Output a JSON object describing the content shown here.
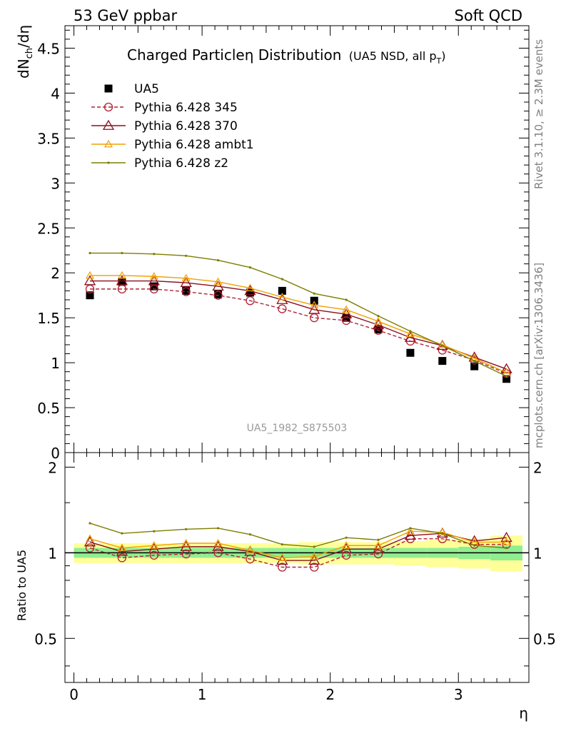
{
  "header": {
    "left": "53 GeV ppbar",
    "right": "Soft QCD"
  },
  "side_text": {
    "right_top": "Rivet 3.1.10, ≥ 2.3M events",
    "right_bottom": "mcplots.cern.ch [arXiv:1306.3436]"
  },
  "watermark": "UA5_1982_S875503",
  "chart_data": [
    {
      "type": "line",
      "panel": "main",
      "title": "Charged Particleη Distribution",
      "subtitle": "(UA5 NSD, all p",
      "subtitle_sub": "T",
      "subtitle_close": ")",
      "xlabel": "η",
      "ylabel": "dN",
      "ylabel_sub": "ch",
      "ylabel_tail": "/dη",
      "xlim": [
        -0.07,
        3.55
      ],
      "ylim": [
        0,
        4.75
      ],
      "x_ticks": [
        0,
        1,
        2,
        3
      ],
      "y_ticks": [
        0,
        0.5,
        1,
        1.5,
        2,
        2.5,
        3,
        3.5,
        4,
        4.5
      ],
      "y_tick_labels": [
        "0",
        "0.5",
        "1",
        "1.5",
        "2",
        "2.5",
        "3",
        "3.5",
        "4",
        "4.5"
      ],
      "legend_position": "top-left",
      "x": [
        0.125,
        0.375,
        0.625,
        0.875,
        1.125,
        1.375,
        1.625,
        1.875,
        2.125,
        2.375,
        2.625,
        2.875,
        3.125,
        3.375
      ],
      "series": [
        {
          "name": "UA5",
          "color": "#000000",
          "marker": "square",
          "line": "none",
          "values": [
            1.75,
            1.9,
            1.85,
            1.8,
            1.76,
            1.78,
            1.8,
            1.69,
            1.5,
            1.37,
            1.11,
            1.02,
            0.96,
            0.82
          ]
        },
        {
          "name": "Pythia 6.428 345",
          "color": "#b22234",
          "marker": "open-circle",
          "line": "dashed",
          "values": [
            1.82,
            1.82,
            1.82,
            1.79,
            1.75,
            1.69,
            1.6,
            1.5,
            1.47,
            1.36,
            1.24,
            1.14,
            1.03,
            0.88
          ]
        },
        {
          "name": "Pythia 6.428 370",
          "color": "#8b0f1f",
          "marker": "open-triangle",
          "line": "solid",
          "values": [
            1.91,
            1.91,
            1.91,
            1.89,
            1.85,
            1.8,
            1.7,
            1.59,
            1.54,
            1.42,
            1.28,
            1.19,
            1.06,
            0.93
          ]
        },
        {
          "name": "Pythia 6.428 ambt1",
          "color": "#f2a000",
          "marker": "open-triangle-small",
          "line": "solid",
          "values": [
            1.97,
            1.97,
            1.96,
            1.94,
            1.9,
            1.83,
            1.73,
            1.64,
            1.59,
            1.46,
            1.32,
            1.2,
            1.05,
            0.89
          ]
        },
        {
          "name": "Pythia 6.428 z2",
          "color": "#7d7d00",
          "marker": "dot",
          "line": "solid",
          "values": [
            2.22,
            2.22,
            2.21,
            2.19,
            2.14,
            2.06,
            1.93,
            1.77,
            1.7,
            1.52,
            1.35,
            1.19,
            1.02,
            0.85
          ]
        }
      ]
    },
    {
      "type": "line",
      "panel": "ratio",
      "ylabel": "Ratio to UA5",
      "xlabel": "η",
      "xlim": [
        -0.07,
        3.55
      ],
      "ylim": [
        0.35,
        2.25
      ],
      "y_scale": "log",
      "y_ticks": [
        0.5,
        1,
        2
      ],
      "y_tick_labels": [
        "0.5",
        "1",
        "2"
      ],
      "x_ticks": [
        0,
        1,
        2,
        3
      ],
      "x_tick_labels": [
        "0",
        "1",
        "2",
        "3"
      ],
      "x": [
        0.125,
        0.375,
        0.625,
        0.875,
        1.125,
        1.375,
        1.625,
        1.875,
        2.125,
        2.375,
        2.625,
        2.875,
        3.125,
        3.375
      ],
      "uncertainty_bands": {
        "stat_color": "#90ee90",
        "syst_color": "#ffff99",
        "bin_edges": [
          0,
          0.25,
          0.5,
          0.75,
          1.0,
          1.25,
          1.5,
          1.75,
          2.0,
          2.25,
          2.5,
          2.75,
          3.0,
          3.25,
          3.5
        ],
        "inner_up": [
          1.04,
          1.04,
          1.04,
          1.04,
          1.04,
          1.04,
          1.04,
          1.04,
          1.04,
          1.04,
          1.04,
          1.04,
          1.05,
          1.06
        ],
        "inner_down": [
          0.96,
          0.96,
          0.96,
          0.96,
          0.96,
          0.96,
          0.96,
          0.96,
          0.96,
          0.96,
          0.96,
          0.96,
          0.95,
          0.94
        ],
        "outer_up": [
          1.08,
          1.08,
          1.08,
          1.08,
          1.08,
          1.08,
          1.08,
          1.09,
          1.09,
          1.09,
          1.1,
          1.11,
          1.12,
          1.15
        ],
        "outer_down": [
          0.92,
          0.92,
          0.92,
          0.92,
          0.92,
          0.92,
          0.92,
          0.91,
          0.91,
          0.91,
          0.9,
          0.89,
          0.88,
          0.86
        ]
      },
      "series": [
        {
          "name": "Pythia 6.428 345",
          "color": "#b22234",
          "marker": "open-circle",
          "line": "dashed",
          "values": [
            1.04,
            0.96,
            0.98,
            0.99,
            1.0,
            0.95,
            0.89,
            0.89,
            0.98,
            0.99,
            1.12,
            1.12,
            1.07,
            1.07
          ]
        },
        {
          "name": "Pythia 6.428 370",
          "color": "#8b0f1f",
          "marker": "open-triangle",
          "line": "solid",
          "values": [
            1.09,
            1.01,
            1.03,
            1.05,
            1.05,
            1.01,
            0.94,
            0.94,
            1.03,
            1.03,
            1.15,
            1.17,
            1.1,
            1.13
          ]
        },
        {
          "name": "Pythia 6.428 ambt1",
          "color": "#f2a000",
          "marker": "open-triangle-small",
          "line": "solid",
          "values": [
            1.12,
            1.04,
            1.06,
            1.08,
            1.08,
            1.02,
            0.96,
            0.97,
            1.06,
            1.06,
            1.19,
            1.18,
            1.09,
            1.09
          ]
        },
        {
          "name": "Pythia 6.428 z2",
          "color": "#7d7d00",
          "marker": "dot",
          "line": "solid",
          "values": [
            1.27,
            1.17,
            1.19,
            1.21,
            1.22,
            1.16,
            1.07,
            1.05,
            1.13,
            1.11,
            1.22,
            1.17,
            1.06,
            1.04
          ]
        }
      ]
    }
  ]
}
